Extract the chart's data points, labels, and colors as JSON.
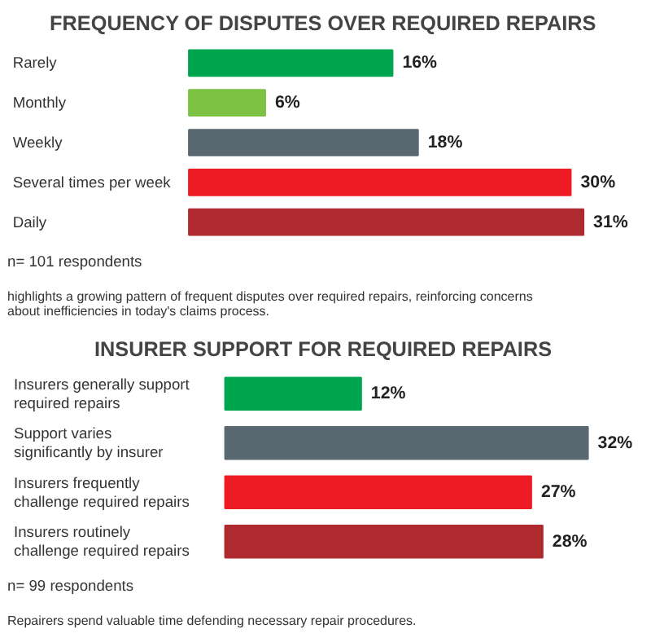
{
  "chart_data": [
    {
      "type": "bar",
      "orientation": "horizontal",
      "title": "FREQUENCY OF DISPUTES OVER REQUIRED REPAIRS",
      "categories": [
        "Rarely",
        "Monthly",
        "Weekly",
        "Several times per week",
        "Daily"
      ],
      "values": [
        16,
        6,
        18,
        30,
        31
      ],
      "colors": [
        "#00a550",
        "#7dc242",
        "#5a6872",
        "#ed1c24",
        "#ae2a2e"
      ],
      "value_labels": [
        "16%",
        "6%",
        "18%",
        "30%",
        "31%"
      ],
      "grid": false,
      "annotations": [
        "n= 101 respondents",
        "highlights a growing pattern of frequent disputes over required repairs, reinforcing concerns about inefficiencies in today's claims process."
      ]
    },
    {
      "type": "bar",
      "orientation": "horizontal",
      "title": "INSURER SUPPORT FOR REQUIRED REPAIRS",
      "categories": [
        "Insurers generally support required repairs",
        "Support varies significantly by insurer",
        "Insurers frequently challenge required repairs",
        "Insurers routinely challenge required repairs"
      ],
      "values": [
        12,
        32,
        27,
        28
      ],
      "colors": [
        "#00a550",
        "#5a6872",
        "#ed1c24",
        "#ae2a2e"
      ],
      "value_labels": [
        "12%",
        "32%",
        "27%",
        "28%"
      ],
      "grid": false,
      "annotations": [
        "n= 99 respondents",
        "Repairers spend valuable time defending necessary repair procedures."
      ]
    }
  ]
}
